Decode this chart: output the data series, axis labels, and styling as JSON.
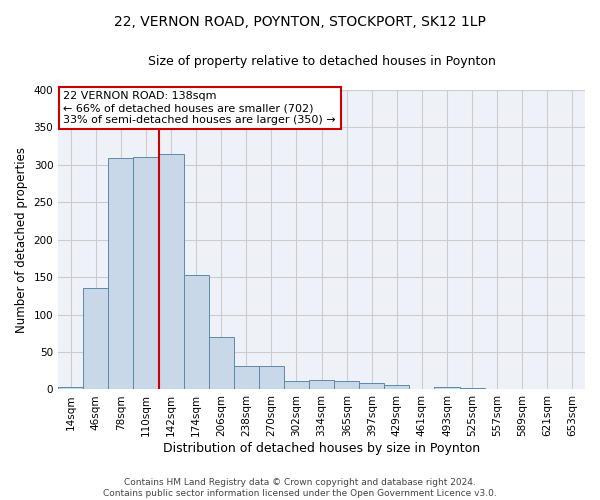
{
  "title1": "22, VERNON ROAD, POYNTON, STOCKPORT, SK12 1LP",
  "title2": "Size of property relative to detached houses in Poynton",
  "xlabel": "Distribution of detached houses by size in Poynton",
  "ylabel": "Number of detached properties",
  "bar_labels": [
    "14sqm",
    "46sqm",
    "78sqm",
    "110sqm",
    "142sqm",
    "174sqm",
    "206sqm",
    "238sqm",
    "270sqm",
    "302sqm",
    "334sqm",
    "365sqm",
    "397sqm",
    "429sqm",
    "461sqm",
    "493sqm",
    "525sqm",
    "557sqm",
    "589sqm",
    "621sqm",
    "653sqm"
  ],
  "bar_values": [
    3,
    135,
    309,
    311,
    315,
    153,
    70,
    32,
    32,
    11,
    12,
    11,
    8,
    6,
    0,
    3,
    2,
    0,
    0,
    0,
    1
  ],
  "bar_color": "#c8d8e8",
  "bar_edge_color": "#5a8aaa",
  "property_line_color": "#cc0000",
  "property_line_index": 3.5,
  "annotation_text": "22 VERNON ROAD: 138sqm\n← 66% of detached houses are smaller (702)\n33% of semi-detached houses are larger (350) →",
  "annotation_box_color": "#ffffff",
  "annotation_box_edge": "#cc0000",
  "ylim": [
    0,
    400
  ],
  "yticks": [
    0,
    50,
    100,
    150,
    200,
    250,
    300,
    350,
    400
  ],
  "grid_color": "#cccccc",
  "background_color": "#eef2f8",
  "footer_text": "Contains HM Land Registry data © Crown copyright and database right 2024.\nContains public sector information licensed under the Open Government Licence v3.0.",
  "title1_fontsize": 10,
  "title2_fontsize": 9,
  "xlabel_fontsize": 9,
  "ylabel_fontsize": 8.5,
  "tick_fontsize": 7.5,
  "annotation_fontsize": 8,
  "footer_fontsize": 6.5
}
